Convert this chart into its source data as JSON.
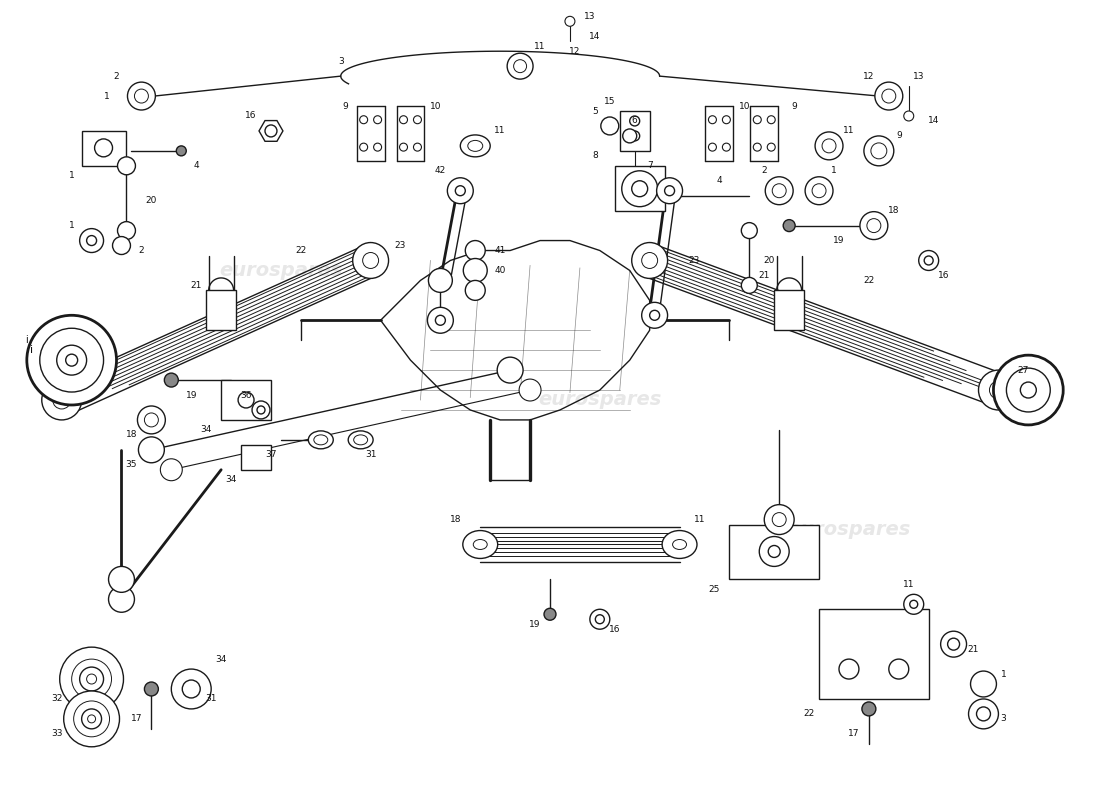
{
  "bg_color": "#ffffff",
  "line_color": "#1a1a1a",
  "watermark_text": "eurospares",
  "fig_width": 11.0,
  "fig_height": 8.0,
  "dpi": 100,
  "lw_main": 1.0,
  "lw_thick": 2.0,
  "lw_thin": 0.6,
  "font_size": 6.5
}
